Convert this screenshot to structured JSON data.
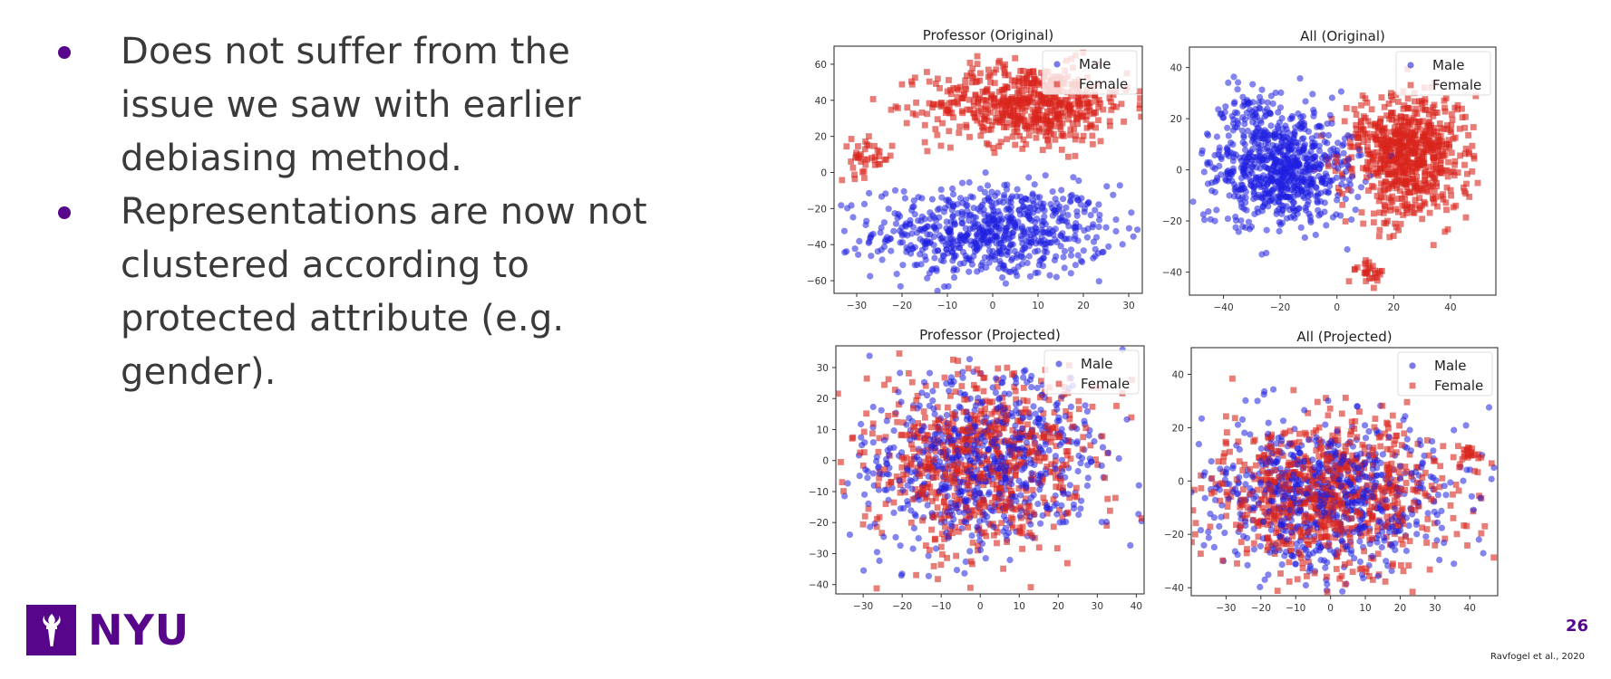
{
  "slide": {
    "bullets": [
      "Does not suffer from the issue we saw with earlier debiasing method.",
      "Representations are now not clustered according to protected attribute (e.g. gender)."
    ],
    "logo_text": "NYU",
    "page_number": "26",
    "citation": "Ravfogel et al., 2020"
  },
  "colors": {
    "accent": "#57068c",
    "male": "#1f1fe0",
    "female": "#d9241d"
  },
  "icons": {
    "logo": "torch-icon"
  },
  "chart_data": [
    {
      "type": "scatter",
      "title": "Professor (Original)",
      "xlim": [
        -35,
        33
      ],
      "ylim": [
        -67,
        70
      ],
      "xticks": [
        -30,
        -20,
        -10,
        0,
        10,
        20,
        30
      ],
      "yticks": [
        -60,
        -40,
        -20,
        0,
        20,
        40,
        60
      ],
      "legend": "top-right",
      "series": [
        {
          "name": "Male",
          "marker": "circle",
          "clusters": [
            {
              "cx": 0,
              "cy": -33,
              "sx": 13,
              "sy": 13,
              "n": 700
            }
          ]
        },
        {
          "name": "Female",
          "marker": "square",
          "clusters": [
            {
              "cx": 8,
              "cy": 38,
              "sx": 11,
              "sy": 11,
              "n": 600
            },
            {
              "cx": -28,
              "cy": 8,
              "sx": 3,
              "sy": 5,
              "n": 40
            }
          ]
        }
      ]
    },
    {
      "type": "scatter",
      "title": "All (Original)",
      "xlim": [
        -52,
        56
      ],
      "ylim": [
        -49,
        48
      ],
      "xticks": [
        -40,
        -20,
        0,
        20,
        40
      ],
      "yticks": [
        -40,
        -20,
        0,
        20,
        40
      ],
      "legend": "top-right",
      "series": [
        {
          "name": "Male",
          "marker": "circle",
          "clusters": [
            {
              "cx": -20,
              "cy": 0,
              "sx": 12,
              "sy": 11,
              "n": 750
            },
            {
              "cx": -32,
              "cy": 22,
              "sx": 4,
              "sy": 5,
              "n": 60
            }
          ]
        },
        {
          "name": "Female",
          "marker": "square",
          "clusters": [
            {
              "cx": 25,
              "cy": 5,
              "sx": 10,
              "sy": 12,
              "n": 700
            },
            {
              "cx": 12,
              "cy": -40,
              "sx": 3,
              "sy": 2,
              "n": 30
            }
          ]
        }
      ]
    },
    {
      "type": "scatter",
      "title": "Professor (Projected)",
      "xlim": [
        -37,
        42
      ],
      "ylim": [
        -43,
        37
      ],
      "xticks": [
        -30,
        -20,
        -10,
        0,
        10,
        20,
        30,
        40
      ],
      "yticks": [
        -40,
        -30,
        -20,
        -10,
        0,
        10,
        20,
        30
      ],
      "legend": "top-right",
      "series": [
        {
          "name": "Male",
          "marker": "circle",
          "clusters": [
            {
              "cx": 0,
              "cy": 0,
              "sx": 15,
              "sy": 14,
              "n": 700
            }
          ]
        },
        {
          "name": "Female",
          "marker": "square",
          "clusters": [
            {
              "cx": 0,
              "cy": 0,
              "sx": 15,
              "sy": 14,
              "n": 700
            }
          ]
        }
      ]
    },
    {
      "type": "scatter",
      "title": "All (Projected)",
      "xlim": [
        -40,
        48
      ],
      "ylim": [
        -43,
        50
      ],
      "xticks": [
        -30,
        -20,
        -10,
        0,
        10,
        20,
        30,
        40
      ],
      "yticks": [
        -40,
        -20,
        0,
        20,
        40
      ],
      "legend": "top-right",
      "series": [
        {
          "name": "Male",
          "marker": "circle",
          "clusters": [
            {
              "cx": 0,
              "cy": -5,
              "sx": 17,
              "sy": 14,
              "n": 750
            }
          ]
        },
        {
          "name": "Female",
          "marker": "square",
          "clusters": [
            {
              "cx": 0,
              "cy": -5,
              "sx": 17,
              "sy": 14,
              "n": 750
            },
            {
              "cx": 40,
              "cy": 10,
              "sx": 3,
              "sy": 2,
              "n": 25
            }
          ]
        }
      ]
    }
  ]
}
